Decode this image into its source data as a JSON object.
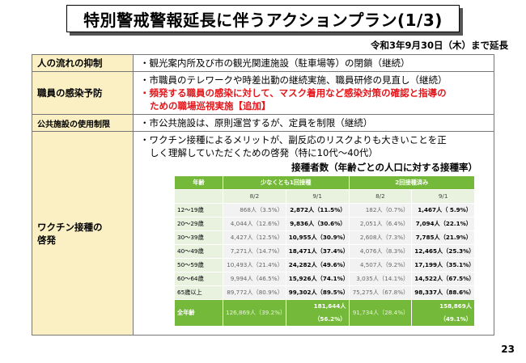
{
  "title": "特別警戒警報延長に伴うアクションプラン(1/3)",
  "deadline": "令和3年9月30日（木）まで延長",
  "rows": [
    {
      "label": "人の流れの抑制",
      "lines": [
        "・観光案内所及び市の観光関連施設（駐車場等）の閉鎖（継続）"
      ]
    },
    {
      "label": "職員の感染予防",
      "line1": "・市職員のテレワークや時差出勤の継続実施、職員研修の見直し（継続）",
      "red1": "・頻発する職員の感染に対して、マスク着用など感染対策の確認と指導の",
      "red2": "ための職場巡視実施【追加】"
    },
    {
      "label": "公共施設の使用制限",
      "lines": [
        "・市公共施設は、原則運営するが、定員を制限（継続）"
      ]
    },
    {
      "label1": "ワクチン接種の",
      "label2": "啓発",
      "line1": "・ワクチン接種によるメリットが、副反応のリスクよりも大きいことを正",
      "line2": "しく理解していただくための啓発（特に10代～40代）"
    }
  ],
  "vaccine_table": {
    "title": "接種者数（年齢ごとの人口に対する接種率）",
    "header": {
      "age": "年齢",
      "group1": "少なくとも1回接種",
      "group2": "2回接種済み"
    },
    "dates": [
      "8/2",
      "9/1",
      "8/2",
      "9/1"
    ],
    "rows": [
      {
        "age": "12～19歳",
        "v1": "868人（3.5%）",
        "v2": "2,872人（11.5%）",
        "v3": "182人（0.7%）",
        "v4": "1,467人（ 5.9%）"
      },
      {
        "age": "20～29歳",
        "v1": "4,044人（12.6%）",
        "v2": "9,836人（30.6%）",
        "v3": "2,051人（6.4%）",
        "v4": "7,094人（22.1%）"
      },
      {
        "age": "30～39歳",
        "v1": "4,427人（12.5%）",
        "v2": "10,955人（30.9%）",
        "v3": "2,608人（7.3%）",
        "v4": "7,785人（21.9%）"
      },
      {
        "age": "40～49歳",
        "v1": "7,271人（14.7%）",
        "v2": "18,471人（37.4%）",
        "v3": "4,076人（8.3%）",
        "v4": "12,465人（25.3%）"
      },
      {
        "age": "50～59歳",
        "v1": "10,493人（21.4%）",
        "v2": "24,282人（49.6%）",
        "v3": "4,507人（9.2%）",
        "v4": "17,199人（35.1%）"
      },
      {
        "age": "60～64歳",
        "v1": "9,994人（46.5%）",
        "v2": "15,926人（74.1%）",
        "v3": "3,035人（14.1%）",
        "v4": "14,522人（67.5%）"
      },
      {
        "age": "65歳以上",
        "v1": "89,772人（80.9%）",
        "v2": "99,302人（89.5%）",
        "v3": "75,275人（67.8%）",
        "v4": "98,337人（88.6%）"
      }
    ],
    "total": {
      "age": "全年齢",
      "v1": "126,869人（39.2%）",
      "v2": "181,644人（56.2%）",
      "v3": "91,734人（28.4%）",
      "v4": "158,869人（49.1%）"
    }
  },
  "page_number": "23"
}
